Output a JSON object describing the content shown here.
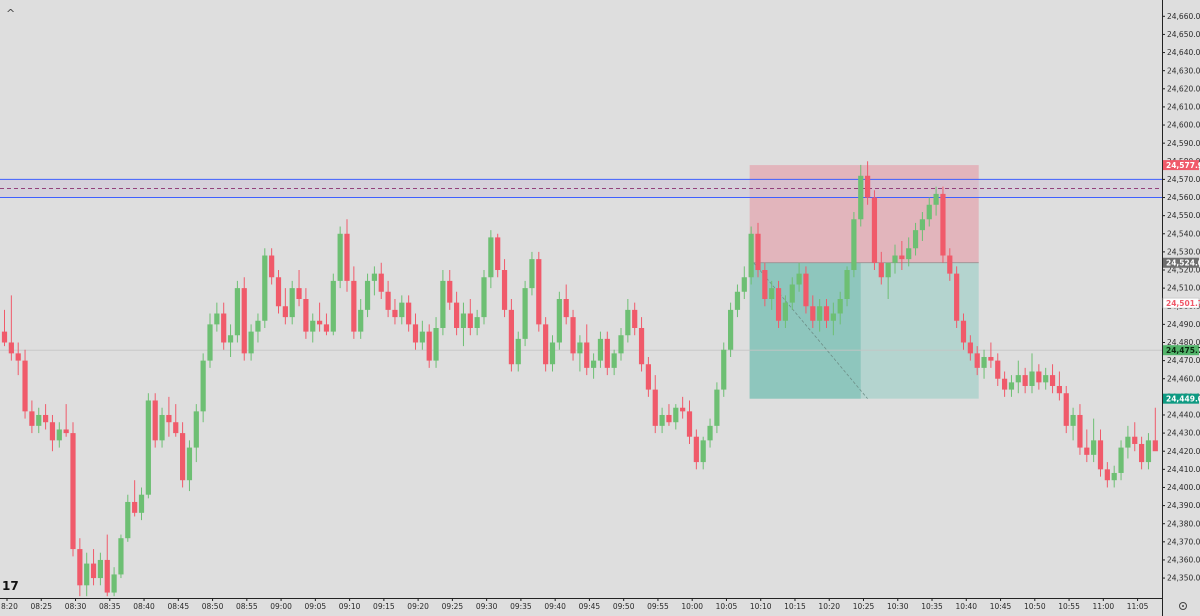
{
  "chart_data": {
    "type": "candlestick",
    "y_ticks": [
      24350,
      24360,
      24370,
      24380,
      24390,
      24400,
      24410,
      24420,
      24430,
      24440,
      24450,
      24460,
      24470,
      24480,
      24490,
      24500,
      24510,
      24520,
      24530,
      24540,
      24550,
      24560,
      24570,
      24580,
      24590,
      24600,
      24610,
      24620,
      24630,
      24640,
      24650,
      24660
    ],
    "y_tick_labels": [
      "24,350.00",
      "24,360.00",
      "24,370.00",
      "24,380.00",
      "24,390.00",
      "24,400.00",
      "24,410.00",
      "24,420.00",
      "24,430.00",
      "24,440.00",
      "24,450.00",
      "24,460.00",
      "24,470.00",
      "24,480.00",
      "24,490.00",
      "24,500.00",
      "24,510.00",
      "24,520.00",
      "24,530.00",
      "24,540.00",
      "24,550.00",
      "24,560.00",
      "24,570.00",
      "24,580.00",
      "24,590.00",
      "24,600.00",
      "24,610.00",
      "24,620.00",
      "24,630.00",
      "24,640.00",
      "24,650.00",
      "24,660.00"
    ],
    "ylim": [
      24339,
      24669
    ],
    "x_tick_labels": [
      "8:20",
      "08:25",
      "08:30",
      "08:35",
      "08:40",
      "08:45",
      "08:50",
      "08:55",
      "09:00",
      "09:05",
      "09:10",
      "09:15",
      "09:20",
      "09:25",
      "09:30",
      "09:35",
      "09:40",
      "09:45",
      "09:50",
      "09:55",
      "10:00",
      "10:05",
      "10:10",
      "10:15",
      "10:20",
      "10:25",
      "10:30",
      "10:35",
      "10:40",
      "10:45",
      "10:50",
      "10:55",
      "11:00",
      "11:05"
    ],
    "candle_start": "08:20",
    "candle_interval_minutes": 1,
    "colors": {
      "up": "#6dbf73",
      "down": "#f05a6a"
    },
    "ohlc": [
      [
        24486,
        24498,
        24478,
        24480
      ],
      [
        24480,
        24506,
        24470,
        24474
      ],
      [
        24474,
        24480,
        24462,
        24470
      ],
      [
        24470,
        24476,
        24438,
        24442
      ],
      [
        24442,
        24448,
        24430,
        24434
      ],
      [
        24434,
        24444,
        24430,
        24440
      ],
      [
        24440,
        24446,
        24432,
        24436
      ],
      [
        24436,
        24440,
        24420,
        24426
      ],
      [
        24426,
        24436,
        24422,
        24432
      ],
      [
        24432,
        24446,
        24428,
        24430
      ],
      [
        24430,
        24436,
        24362,
        24366
      ],
      [
        24366,
        24372,
        24340,
        24346
      ],
      [
        24346,
        24364,
        24340,
        24358
      ],
      [
        24358,
        24366,
        24346,
        24350
      ],
      [
        24350,
        24364,
        24346,
        24360
      ],
      [
        24360,
        24374,
        24340,
        24342
      ],
      [
        24342,
        24356,
        24340,
        24352
      ],
      [
        24352,
        24374,
        24350,
        24372
      ],
      [
        24372,
        24396,
        24370,
        24392
      ],
      [
        24392,
        24404,
        24384,
        24386
      ],
      [
        24386,
        24400,
        24382,
        24396
      ],
      [
        24396,
        24452,
        24394,
        24448
      ],
      [
        24448,
        24452,
        24422,
        24426
      ],
      [
        24426,
        24444,
        24422,
        24440
      ],
      [
        24440,
        24450,
        24428,
        24436
      ],
      [
        24436,
        24446,
        24428,
        24430
      ],
      [
        24430,
        24436,
        24400,
        24404
      ],
      [
        24404,
        24426,
        24398,
        24422
      ],
      [
        24422,
        24446,
        24414,
        24442
      ],
      [
        24442,
        24474,
        24436,
        24470
      ],
      [
        24470,
        24496,
        24466,
        24490
      ],
      [
        24490,
        24502,
        24486,
        24496
      ],
      [
        24496,
        24502,
        24476,
        24480
      ],
      [
        24480,
        24490,
        24472,
        24484
      ],
      [
        24484,
        24514,
        24480,
        24510
      ],
      [
        24510,
        24516,
        24470,
        24474
      ],
      [
        24474,
        24490,
        24470,
        24486
      ],
      [
        24486,
        24496,
        24480,
        24492
      ],
      [
        24492,
        24532,
        24488,
        24528
      ],
      [
        24528,
        24532,
        24512,
        24516
      ],
      [
        24516,
        24520,
        24496,
        24500
      ],
      [
        24500,
        24510,
        24490,
        24494
      ],
      [
        24494,
        24514,
        24490,
        24510
      ],
      [
        24510,
        24520,
        24500,
        24504
      ],
      [
        24504,
        24510,
        24482,
        24486
      ],
      [
        24486,
        24496,
        24480,
        24492
      ],
      [
        24492,
        24502,
        24486,
        24490
      ],
      [
        24490,
        24496,
        24484,
        24486
      ],
      [
        24486,
        24518,
        24484,
        24514
      ],
      [
        24514,
        24544,
        24510,
        24540
      ],
      [
        24540,
        24548,
        24508,
        24514
      ],
      [
        24514,
        24522,
        24482,
        24486
      ],
      [
        24486,
        24504,
        24482,
        24498
      ],
      [
        24498,
        24518,
        24494,
        24514
      ],
      [
        24514,
        24522,
        24506,
        24518
      ],
      [
        24518,
        24524,
        24504,
        24508
      ],
      [
        24508,
        24514,
        24494,
        24498
      ],
      [
        24498,
        24504,
        24490,
        24494
      ],
      [
        24494,
        24506,
        24490,
        24502
      ],
      [
        24502,
        24506,
        24486,
        24490
      ],
      [
        24490,
        24496,
        24476,
        24480
      ],
      [
        24480,
        24492,
        24476,
        24486
      ],
      [
        24486,
        24490,
        24466,
        24470
      ],
      [
        24470,
        24494,
        24466,
        24488
      ],
      [
        24488,
        24520,
        24484,
        24514
      ],
      [
        24514,
        24520,
        24498,
        24502
      ],
      [
        24502,
        24508,
        24484,
        24488
      ],
      [
        24488,
        24502,
        24478,
        24496
      ],
      [
        24496,
        24504,
        24484,
        24488
      ],
      [
        24488,
        24498,
        24484,
        24494
      ],
      [
        24494,
        24520,
        24490,
        24516
      ],
      [
        24516,
        24542,
        24510,
        24538
      ],
      [
        24538,
        24540,
        24516,
        24520
      ],
      [
        24520,
        24526,
        24494,
        24498
      ],
      [
        24498,
        24504,
        24464,
        24468
      ],
      [
        24468,
        24486,
        24464,
        24482
      ],
      [
        24482,
        24514,
        24478,
        24510
      ],
      [
        24510,
        24530,
        24506,
        24526
      ],
      [
        24526,
        24530,
        24486,
        24490
      ],
      [
        24490,
        24494,
        24464,
        24468
      ],
      [
        24468,
        24484,
        24464,
        24480
      ],
      [
        24480,
        24508,
        24476,
        24504
      ],
      [
        24504,
        24512,
        24490,
        24494
      ],
      [
        24494,
        24498,
        24470,
        24474
      ],
      [
        24474,
        24484,
        24464,
        24480
      ],
      [
        24480,
        24490,
        24462,
        24466
      ],
      [
        24466,
        24474,
        24460,
        24470
      ],
      [
        24470,
        24486,
        24466,
        24482
      ],
      [
        24482,
        24486,
        24462,
        24466
      ],
      [
        24466,
        24476,
        24462,
        24474
      ],
      [
        24474,
        24488,
        24470,
        24484
      ],
      [
        24484,
        24504,
        24480,
        24498
      ],
      [
        24498,
        24502,
        24484,
        24488
      ],
      [
        24488,
        24494,
        24464,
        24468
      ],
      [
        24468,
        24472,
        24450,
        24454
      ],
      [
        24454,
        24462,
        24430,
        24434
      ],
      [
        24434,
        24444,
        24430,
        24440
      ],
      [
        24440,
        24446,
        24434,
        24436
      ],
      [
        24436,
        24446,
        24432,
        24444
      ],
      [
        24444,
        24450,
        24438,
        24442
      ],
      [
        24442,
        24448,
        24424,
        24428
      ],
      [
        24428,
        24432,
        24410,
        24414
      ],
      [
        24414,
        24428,
        24410,
        24426
      ],
      [
        24426,
        24438,
        24422,
        24434
      ],
      [
        24434,
        24458,
        24430,
        24454
      ],
      [
        24454,
        24480,
        24450,
        24476
      ],
      [
        24476,
        24502,
        24472,
        24498
      ],
      [
        24498,
        24512,
        24494,
        24508
      ],
      [
        24508,
        24522,
        24504,
        24516
      ],
      [
        24516,
        24544,
        24512,
        24540
      ],
      [
        24540,
        24546,
        24516,
        24520
      ],
      [
        24520,
        24524,
        24500,
        24504
      ],
      [
        24504,
        24514,
        24498,
        24510
      ],
      [
        24510,
        24514,
        24488,
        24492
      ],
      [
        24492,
        24506,
        24488,
        24502
      ],
      [
        24502,
        24516,
        24498,
        24512
      ],
      [
        24512,
        24524,
        24508,
        24518
      ],
      [
        24518,
        24522,
        24496,
        24500
      ],
      [
        24500,
        24506,
        24488,
        24492
      ],
      [
        24492,
        24504,
        24486,
        24500
      ],
      [
        24500,
        24504,
        24488,
        24492
      ],
      [
        24492,
        24502,
        24484,
        24496
      ],
      [
        24496,
        24508,
        24490,
        24504
      ],
      [
        24504,
        24522,
        24500,
        24520
      ],
      [
        24520,
        24552,
        24516,
        24548
      ],
      [
        24548,
        24578,
        24544,
        24572
      ],
      [
        24572,
        24580,
        24556,
        24560
      ],
      [
        24560,
        24564,
        24520,
        24524
      ],
      [
        24524,
        24530,
        24512,
        24516
      ],
      [
        24516,
        24522,
        24504,
        24524
      ],
      [
        24524,
        24534,
        24518,
        24528
      ],
      [
        24528,
        24536,
        24520,
        24526
      ],
      [
        24526,
        24538,
        24522,
        24532
      ],
      [
        24532,
        24546,
        24528,
        24542
      ],
      [
        24542,
        24552,
        24536,
        24548
      ],
      [
        24548,
        24560,
        24544,
        24556
      ],
      [
        24556,
        24566,
        24550,
        24562
      ],
      [
        24562,
        24566,
        24524,
        24528
      ],
      [
        24528,
        24532,
        24514,
        24518
      ],
      [
        24518,
        24522,
        24488,
        24492
      ],
      [
        24492,
        24496,
        24476,
        24480
      ],
      [
        24480,
        24484,
        24470,
        24474
      ],
      [
        24474,
        24478,
        24462,
        24466
      ],
      [
        24466,
        24476,
        24460,
        24472
      ],
      [
        24472,
        24480,
        24466,
        24470
      ],
      [
        24470,
        24474,
        24456,
        24460
      ],
      [
        24460,
        24464,
        24450,
        24454
      ],
      [
        24454,
        24462,
        24450,
        24458
      ],
      [
        24458,
        24470,
        24452,
        24462
      ],
      [
        24462,
        24466,
        24452,
        24456
      ],
      [
        24456,
        24474,
        24452,
        24464
      ],
      [
        24464,
        24468,
        24454,
        24458
      ],
      [
        24458,
        24466,
        24454,
        24462
      ],
      [
        24462,
        24468,
        24452,
        24456
      ],
      [
        24456,
        24464,
        24448,
        24452
      ],
      [
        24452,
        24456,
        24430,
        24434
      ],
      [
        24434,
        24444,
        24426,
        24440
      ],
      [
        24440,
        24446,
        24418,
        24422
      ],
      [
        24422,
        24432,
        24414,
        24418
      ],
      [
        24418,
        24438,
        24414,
        24426
      ],
      [
        24426,
        24432,
        24406,
        24410
      ],
      [
        24410,
        24414,
        24400,
        24404
      ],
      [
        24404,
        24412,
        24400,
        24408
      ],
      [
        24408,
        24426,
        24404,
        24422
      ],
      [
        24422,
        24434,
        24416,
        24428
      ],
      [
        24428,
        24436,
        24420,
        24424
      ],
      [
        24424,
        24428,
        24410,
        24414
      ],
      [
        24414,
        24430,
        24410,
        24426
      ],
      [
        24426,
        24444,
        24422,
        24420
      ],
      [
        24420,
        24436,
        24416,
        24430
      ],
      [
        24430,
        24434,
        24412,
        24416
      ],
      [
        24416,
        24420,
        24396,
        24404
      ],
      [
        24404,
        24428,
        24400,
        24424
      ],
      [
        24424,
        24432,
        24416,
        24420
      ],
      [
        24420,
        24436,
        24416,
        24432
      ],
      [
        24432,
        24446,
        24428,
        24440
      ],
      [
        24440,
        24444,
        24428,
        24432
      ],
      [
        24432,
        24444,
        24426,
        24438
      ],
      [
        24438,
        24442,
        24428,
        24432
      ],
      [
        24432,
        24436,
        24418,
        24420
      ],
      [
        24420,
        24446,
        24416,
        24442
      ],
      [
        24442,
        24466,
        24438,
        24460
      ],
      [
        24460,
        24474,
        24456,
        24468
      ],
      [
        24468,
        24482,
        24440,
        24450
      ],
      [
        24450,
        24478,
        24446,
        24474
      ],
      [
        24474,
        24490,
        24470,
        24486
      ],
      [
        24486,
        24498,
        24482,
        24494
      ],
      [
        24494,
        24516,
        24490,
        24510
      ],
      [
        24510,
        24520,
        24506,
        24514
      ],
      [
        24514,
        24518,
        24500,
        24504
      ],
      [
        24504,
        24514,
        24488,
        24494
      ],
      [
        24494,
        24520,
        24490,
        24516
      ],
      [
        24516,
        24524,
        24500,
        24504
      ],
      [
        24504,
        24520,
        24500,
        24512
      ]
    ],
    "zone_upper": 24570,
    "zone_lower": 24560,
    "zone_mid": 24565,
    "reference_level": 24475.75,
    "position": {
      "type": "short",
      "entry": 24524.0,
      "stop": 24577.9,
      "target": 24449.0,
      "start": "10:09",
      "end": "10:42",
      "filled_until": "10:25",
      "colors": {
        "stop_zone": "#e2b5bc",
        "target_zone": "#b4d4cf",
        "target_zone_active": "#8ec6bd"
      }
    },
    "price_tags": [
      {
        "label": "24,577.90",
        "value": 24577.9,
        "bg": "#f05a6a",
        "fg": "#ffffff"
      },
      {
        "label": "24,524.00",
        "value": 24524.0,
        "bg": "#6e6e6e",
        "fg": "#ffffff"
      },
      {
        "label": "24,501.75",
        "value": 24501.75,
        "bg": "#ffffff",
        "fg": "#f05a6a"
      },
      {
        "label": "24,475.75",
        "value": 24475.75,
        "bg": "#52b46a",
        "fg": "#0a2a10"
      },
      {
        "label": "24,449.00",
        "value": 24449.0,
        "bg": "#0e9a82",
        "fg": "#ffffff"
      }
    ],
    "logo_text": "17",
    "colors_ui": {
      "background": "#dedede",
      "zone_line": "#3f5fff",
      "zone_mid": "#8a2e6e",
      "axis": "#222222"
    }
  }
}
